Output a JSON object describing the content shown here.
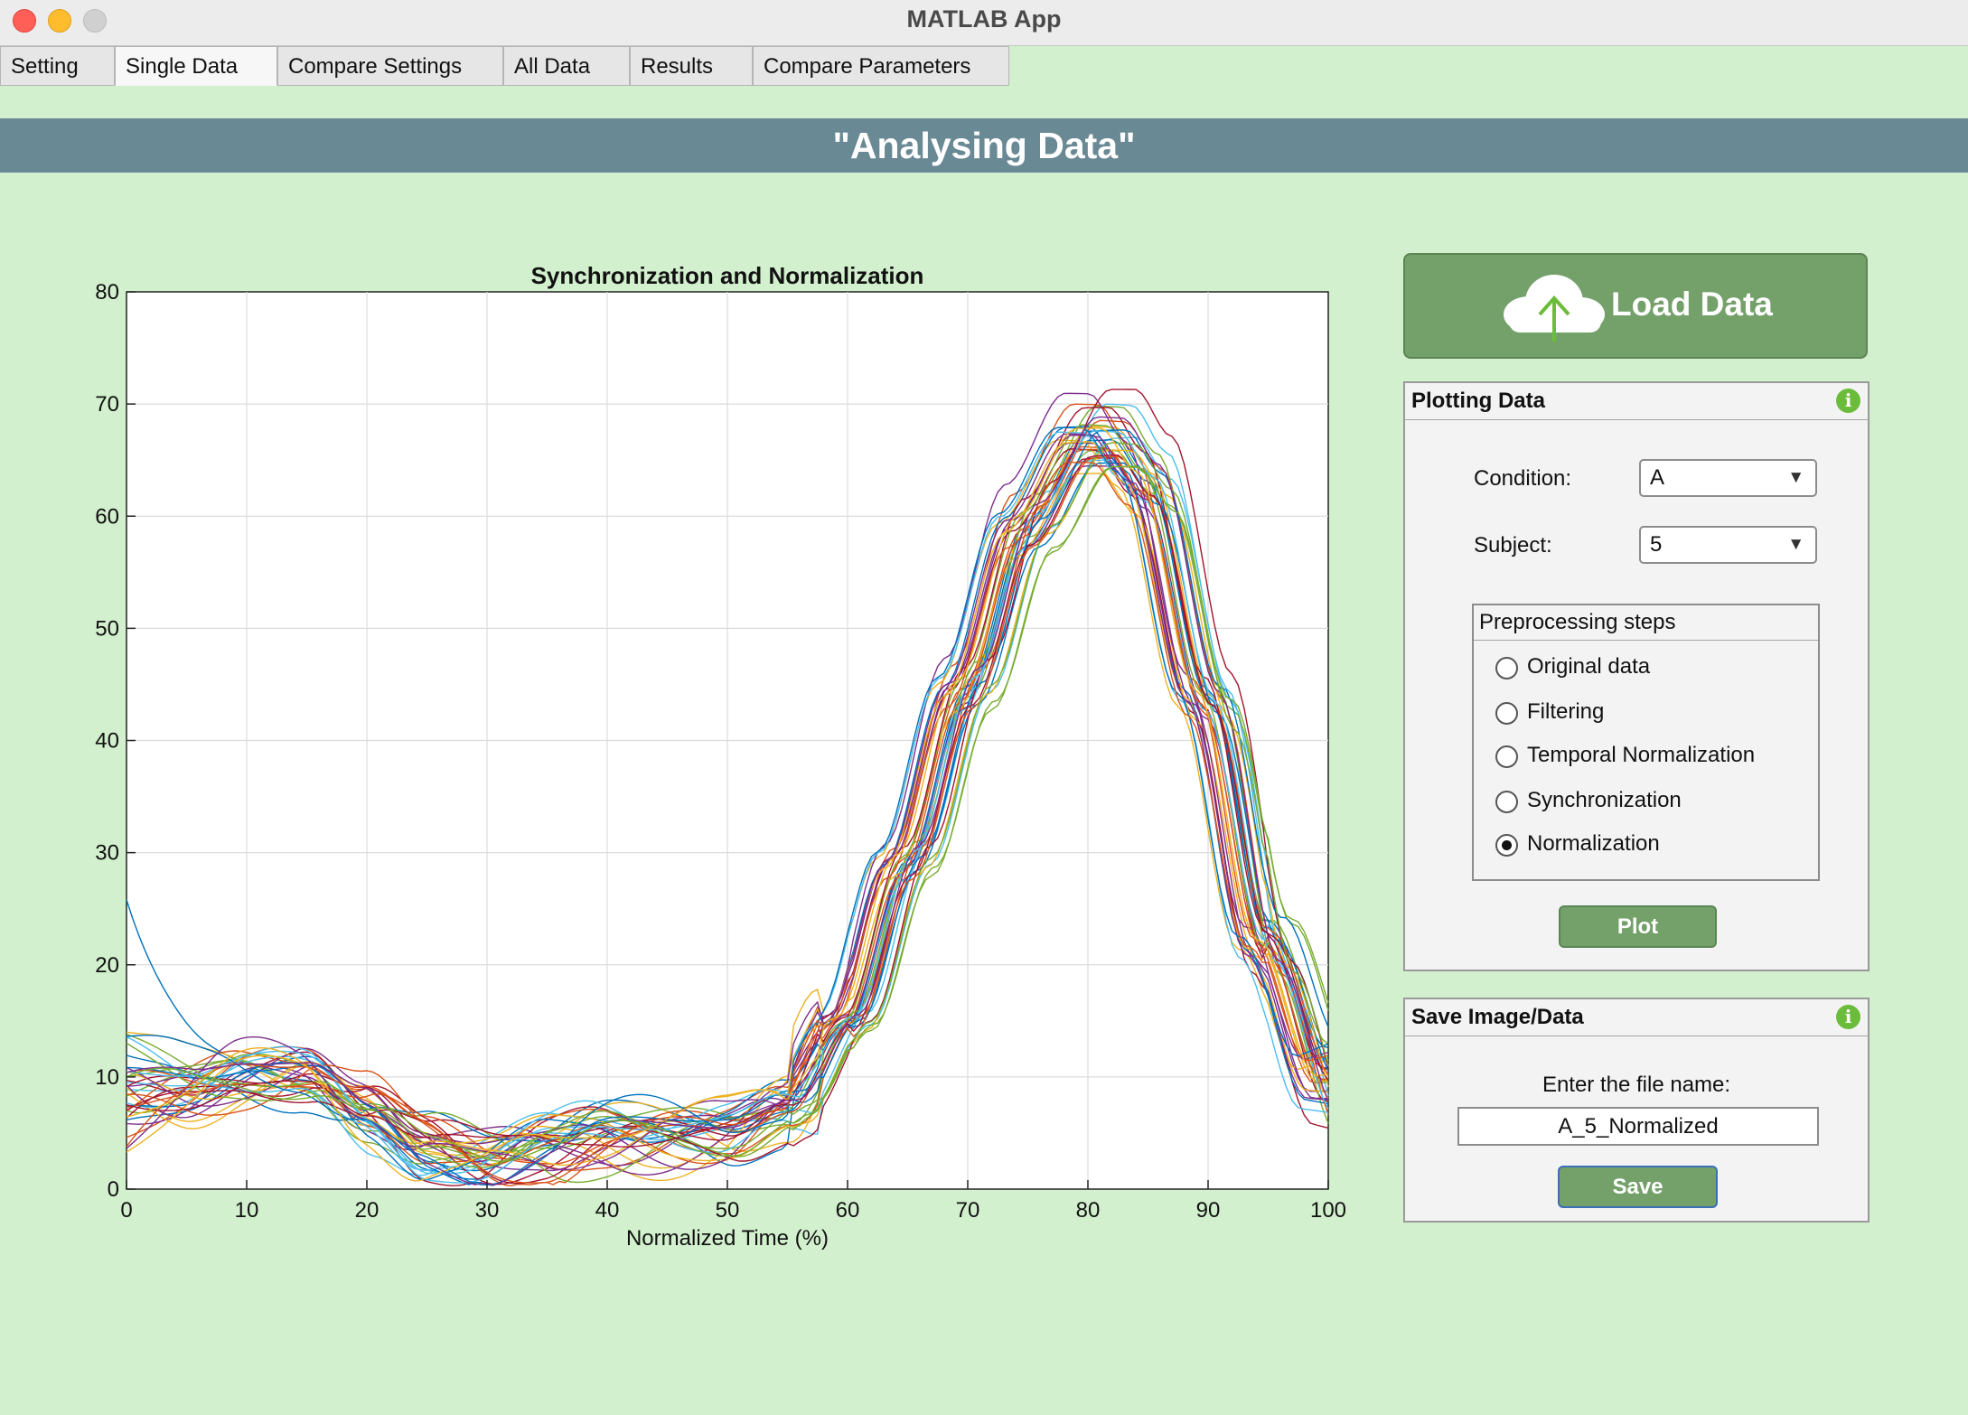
{
  "window": {
    "title": "MATLAB App"
  },
  "tabs": [
    {
      "label": "Setting",
      "active": false
    },
    {
      "label": "Single Data",
      "active": true
    },
    {
      "label": "Compare Settings",
      "active": false
    },
    {
      "label": "All Data",
      "active": false
    },
    {
      "label": "Results",
      "active": false
    },
    {
      "label": "Compare Parameters",
      "active": false
    }
  ],
  "banner": {
    "title": "\"Analysing Data\""
  },
  "load_button": {
    "label": "Load Data",
    "icon": "cloud-upload-icon"
  },
  "plotting_panel": {
    "title": "Plotting Data",
    "condition_label": "Condition:",
    "condition_value": "A",
    "subject_label": "Subject:",
    "subject_value": "5",
    "preprocessing_title": "Preprocessing steps",
    "options": [
      {
        "label": "Original data",
        "selected": false
      },
      {
        "label": "Filtering",
        "selected": false
      },
      {
        "label": "Temporal Normalization",
        "selected": false
      },
      {
        "label": "Synchronization",
        "selected": false
      },
      {
        "label": "Normalization",
        "selected": true
      }
    ],
    "plot_button": "Plot"
  },
  "save_panel": {
    "title": "Save Image/Data",
    "prompt": "Enter the file name:",
    "filename": "A_5_Normalized",
    "save_button": "Save"
  },
  "colors": {
    "background": "#d2f0cd",
    "banner": "#698995",
    "button_green": "#74a06a",
    "info_green": "#6cbc3b"
  },
  "chart_data": {
    "type": "line",
    "title": "Synchronization and Normalization",
    "xlabel": "Normalized Time (%)",
    "ylabel": "",
    "xlim": [
      0,
      100
    ],
    "ylim": [
      0,
      80
    ],
    "xticks": [
      0,
      10,
      20,
      30,
      40,
      50,
      60,
      70,
      80,
      90,
      100
    ],
    "yticks": [
      0,
      10,
      20,
      30,
      40,
      50,
      60,
      70,
      80
    ],
    "grid": true,
    "series_count": 40,
    "x": [
      0,
      5,
      10,
      15,
      20,
      25,
      30,
      35,
      40,
      45,
      50,
      55,
      60,
      65,
      70,
      75,
      80,
      82,
      85,
      90,
      95,
      100
    ],
    "mean_y": [
      9,
      9,
      10,
      10,
      7,
      4,
      3,
      4,
      5,
      5,
      5,
      7,
      15,
      30,
      46,
      61,
      69,
      69,
      65,
      45,
      22,
      9
    ],
    "series_colors": [
      "#0072bd",
      "#d95319",
      "#edb120",
      "#7e2f8e",
      "#77ac30",
      "#4dbeee",
      "#a2142f"
    ]
  }
}
